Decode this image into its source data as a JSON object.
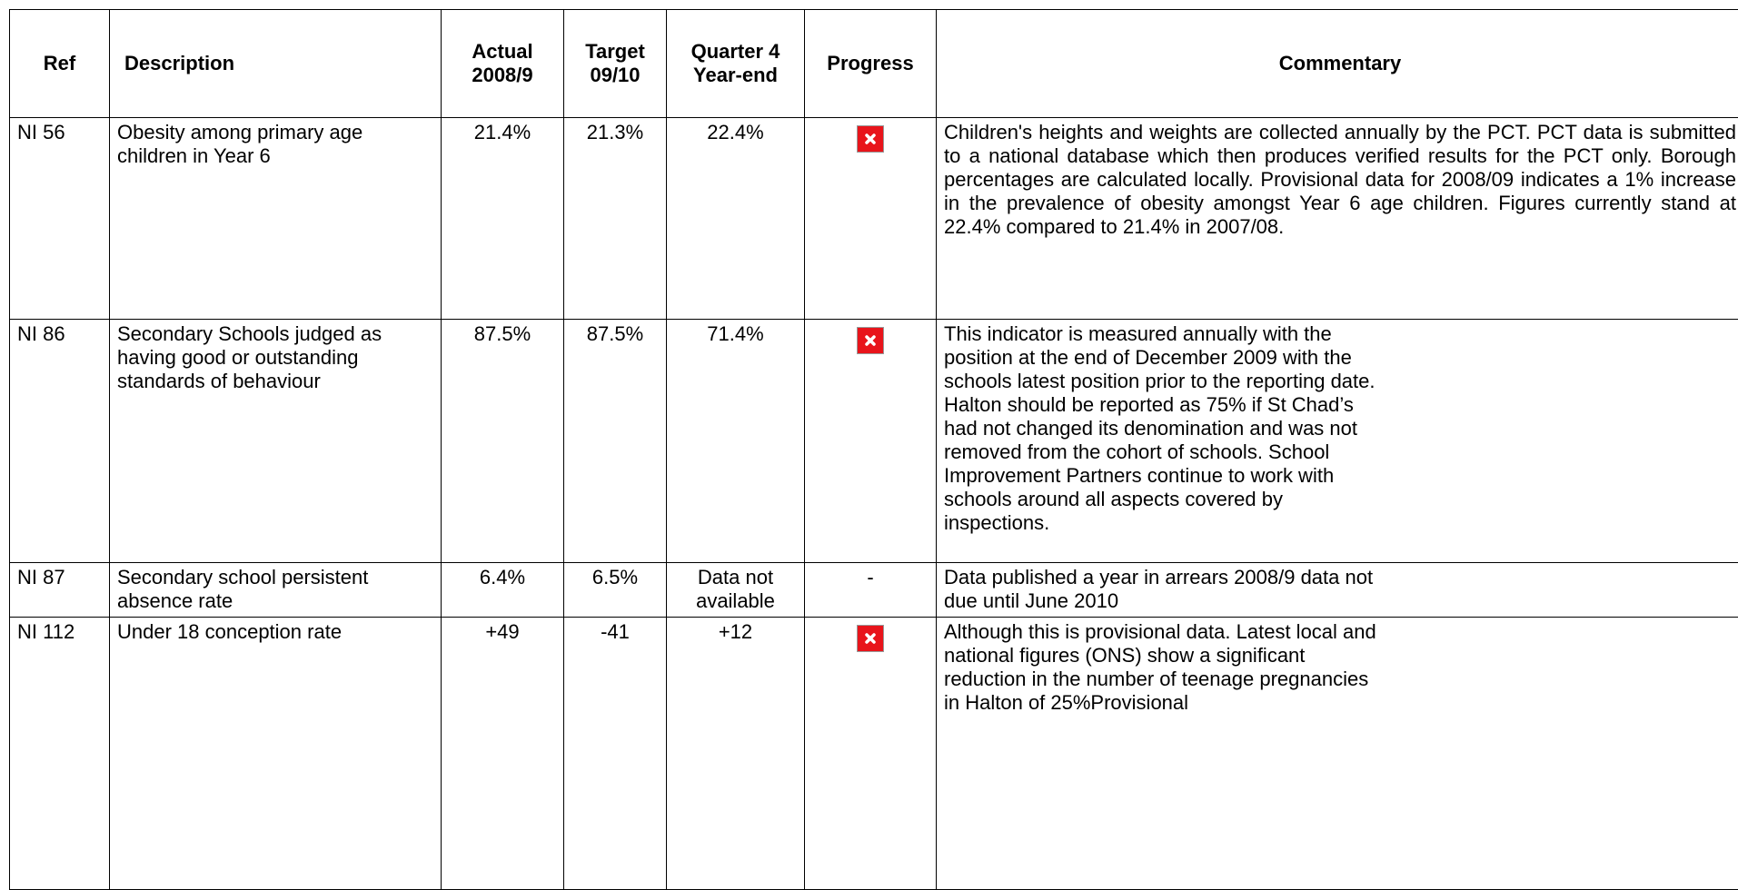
{
  "table": {
    "header": [
      "Ref",
      "Description",
      "Actual\n2008/9",
      "Target\n09/10",
      "Quarter 4\nYear-end",
      "Progress",
      "Commentary"
    ],
    "rows": [
      {
        "ref": "NI 56",
        "description": "Obesity among primary age\nchildren in Year 6",
        "actual": "21.4%",
        "target": "21.3%",
        "q4": "22.4%",
        "commentary": "Children's heights and weights are collected annually by the PCT.  PCT data is submitted to a national database which then produces verified results for the PCT only.  Borough percentages are calculated locally. Provisional data for 2008/09 indicates a 1% increase in the prevalence of obesity amongst Year 6 age children.   Figures currently stand at 22.4% compared to 21.4% in 2007/08."
      },
      {
        "ref": "NI 86",
        "description": "Secondary Schools judged as\nhaving good or outstanding\nstandards of behaviour",
        "actual": "87.5%",
        "target": "87.5%",
        "q4": "71.4%",
        "commentary": "This indicator is measured annually with the\nposition at the end of December 2009 with the\nschools latest position prior to the reporting date.\nHalton should be reported as 75% if St Chad’s\nhad not changed its denomination and was not\nremoved from the cohort of schools.  School\nImprovement Partners continue to work with\nschools around all aspects covered by\ninspections."
      },
      {
        "ref": "NI 87",
        "description": "Secondary school persistent\nabsence rate",
        "actual": "6.4%",
        "target": "6.5%",
        "q4": "Data not\navailable",
        "progress": "-",
        "commentary": "Data published a year in arrears  2008/9 data not\ndue until June 2010"
      },
      {
        "ref": "NI 112",
        "description": "Under 18 conception rate",
        "actual": "+49",
        "target": "-41",
        "q4": "+12",
        "commentary": "Although this is provisional data.  Latest local and\nnational figures (ONS) show a significant\nreduction in the number of teenage pregnancies\nin Halton of 25%Provisional"
      }
    ]
  }
}
